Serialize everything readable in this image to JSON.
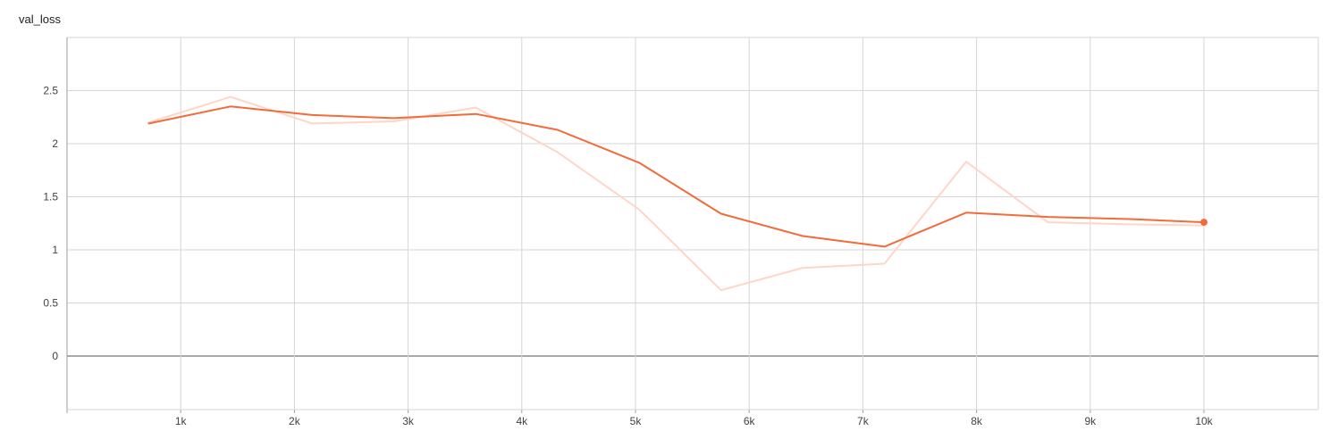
{
  "chart_data": {
    "type": "line",
    "title": "val_loss",
    "xlabel": "",
    "ylabel": "",
    "xlim": [
      0,
      11000
    ],
    "ylim": [
      -0.5,
      3.0
    ],
    "x_ticks": [
      1000,
      2000,
      3000,
      4000,
      5000,
      6000,
      7000,
      8000,
      9000,
      10000
    ],
    "x_tick_labels": [
      "1k",
      "2k",
      "3k",
      "4k",
      "5k",
      "6k",
      "7k",
      "8k",
      "9k",
      "10k"
    ],
    "y_ticks": [
      0,
      0.5,
      1,
      1.5,
      2,
      2.5
    ],
    "y_tick_labels": [
      "0",
      "0.5",
      "1",
      "1.5",
      "2",
      "2.5"
    ],
    "grid": true,
    "colors": {
      "smoothed": "#f26b3a",
      "raw": "#ffd5c8"
    },
    "series": [
      {
        "role": "raw",
        "x": [
          719,
          1438,
          2157,
          2876,
          3595,
          4314,
          5033,
          5752,
          6471,
          7190,
          7909,
          8628,
          9347,
          10000
        ],
        "values": [
          2.2,
          2.44,
          2.19,
          2.21,
          2.34,
          1.92,
          1.38,
          0.62,
          0.83,
          0.87,
          1.83,
          1.26,
          1.24,
          1.23
        ]
      },
      {
        "role": "smoothed",
        "x": [
          719,
          1438,
          2157,
          2876,
          3595,
          4314,
          5033,
          5752,
          6471,
          7190,
          7909,
          8628,
          9347,
          10000
        ],
        "values": [
          2.19,
          2.35,
          2.27,
          2.24,
          2.28,
          2.13,
          1.82,
          1.34,
          1.13,
          1.03,
          1.35,
          1.31,
          1.29,
          1.26
        ]
      }
    ]
  }
}
